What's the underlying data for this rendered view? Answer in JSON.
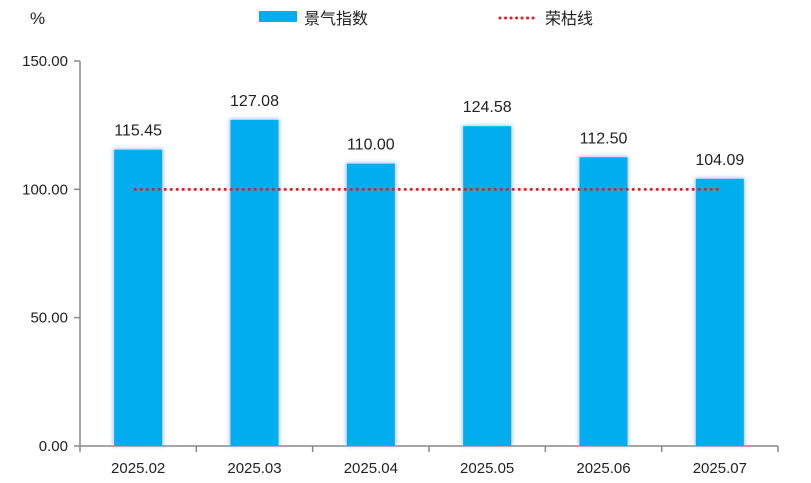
{
  "chart_data": {
    "type": "bar",
    "unit": "%",
    "categories": [
      "2025.02",
      "2025.03",
      "2025.04",
      "2025.05",
      "2025.06",
      "2025.07"
    ],
    "series": [
      {
        "name": "景气指数",
        "type": "bar",
        "color": "#00AEEF",
        "values": [
          115.45,
          127.08,
          110.0,
          124.58,
          112.5,
          104.09
        ],
        "labels": [
          "115.45",
          "127.08",
          "110.00",
          "124.58",
          "112.50",
          "104.09"
        ]
      },
      {
        "name": "荣枯线",
        "type": "line",
        "style": "dotted",
        "color": "#E02020",
        "values": [
          100,
          100,
          100,
          100,
          100,
          100
        ]
      }
    ],
    "ylim": [
      0,
      150
    ],
    "yticks": [
      0,
      50,
      100,
      150
    ],
    "ytick_labels": [
      "0.00",
      "50.00",
      "100.00",
      "150.00"
    ],
    "grid": false,
    "legend_position": "top-center"
  }
}
